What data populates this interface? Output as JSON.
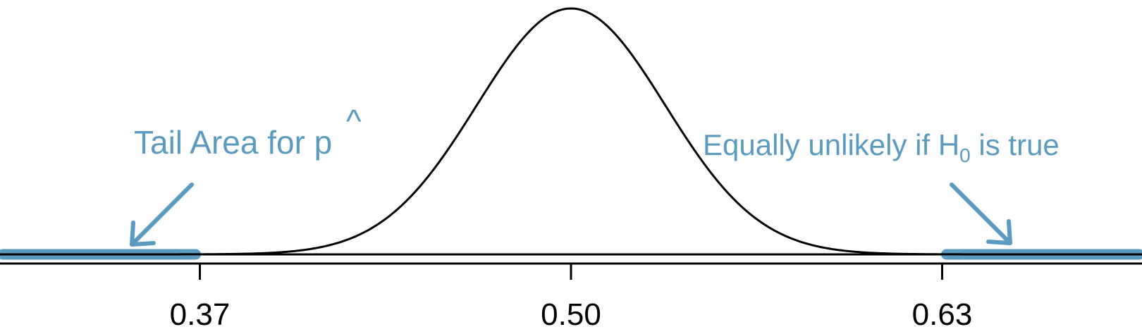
{
  "chart_data": {
    "type": "line",
    "distribution": "normal",
    "mean": 0.5,
    "sd": 0.033,
    "xlim": [
      0.3,
      0.7
    ],
    "x_ticks": [
      0.37,
      0.5,
      0.63
    ],
    "tick_labels": [
      "0.37",
      "0.50",
      "0.63"
    ],
    "shaded_tails": [
      {
        "from": 0.3,
        "to": 0.37
      },
      {
        "from": 0.63,
        "to": 0.7
      }
    ],
    "annotations": {
      "left": {
        "text": "Tail Area for p",
        "hat_char": "^"
      },
      "right": {
        "prefix": "Equally unlikely if H",
        "subscript": "0",
        "suffix": " is true"
      }
    }
  },
  "colors": {
    "accent": "#5B9BBF",
    "curve": "#000000",
    "axis": "#000000"
  }
}
